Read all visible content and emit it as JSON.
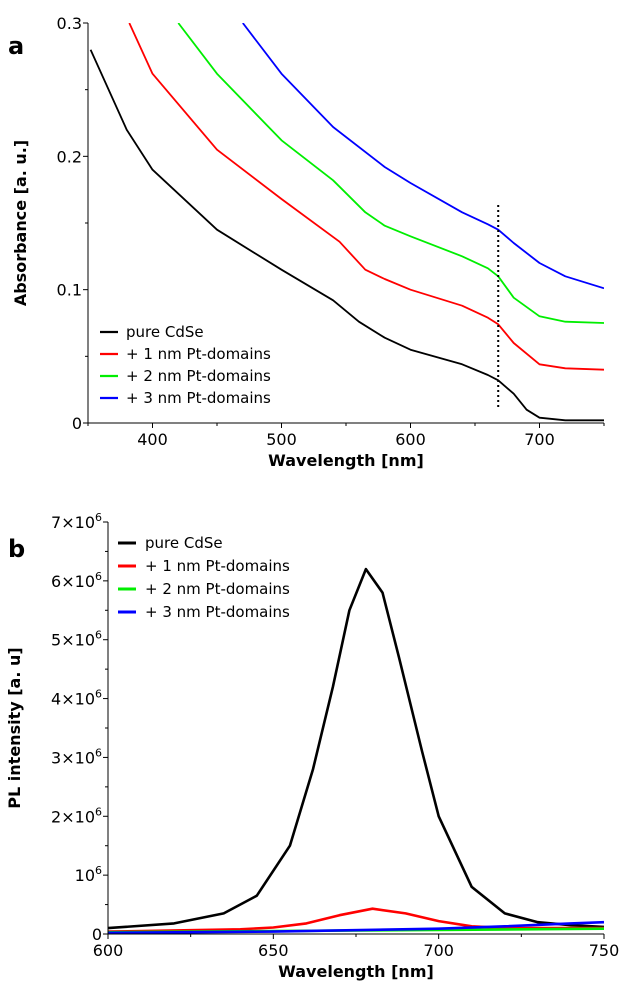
{
  "chart_data": [
    {
      "panel": "a",
      "type": "line",
      "xlabel": "Wavelength [nm]",
      "ylabel": "Absorbance [a. u.]",
      "xlim": [
        350,
        750
      ],
      "ylim": [
        0,
        0.3
      ],
      "xticks": [
        400,
        500,
        600,
        700
      ],
      "yticks": [
        {
          "value": 0,
          "label": "0"
        },
        {
          "value": 0.1,
          "label": "0.1"
        },
        {
          "value": 0.2,
          "label": "0.2"
        },
        {
          "value": 0.3,
          "label": "0.3"
        }
      ],
      "legend_position": "bottom-left",
      "marker_line": {
        "x": 668,
        "ymin": 0.012,
        "ymax": 0.165,
        "style": "dotted"
      },
      "series": [
        {
          "name": "pure CdSe",
          "color": "#000000",
          "x": [
            352,
            380,
            400,
            450,
            500,
            540,
            560,
            580,
            600,
            640,
            660,
            668,
            680,
            690,
            700,
            720,
            750
          ],
          "y": [
            0.28,
            0.22,
            0.19,
            0.145,
            0.115,
            0.092,
            0.076,
            0.064,
            0.055,
            0.044,
            0.036,
            0.032,
            0.022,
            0.01,
            0.004,
            0.002,
            0.002
          ]
        },
        {
          "name": "+ 1 nm Pt-domains",
          "color": "#ff0000",
          "x": [
            382,
            400,
            450,
            500,
            545,
            565,
            580,
            600,
            640,
            660,
            668,
            680,
            700,
            720,
            750
          ],
          "y": [
            0.3,
            0.262,
            0.205,
            0.168,
            0.136,
            0.115,
            0.108,
            0.1,
            0.088,
            0.079,
            0.074,
            0.06,
            0.044,
            0.041,
            0.04
          ]
        },
        {
          "name": "+ 2 nm Pt-domains",
          "color": "#00ee00",
          "x": [
            420,
            450,
            500,
            540,
            565,
            580,
            600,
            640,
            660,
            668,
            680,
            700,
            720,
            750
          ],
          "y": [
            0.3,
            0.262,
            0.212,
            0.182,
            0.158,
            0.148,
            0.14,
            0.125,
            0.116,
            0.11,
            0.094,
            0.08,
            0.076,
            0.075
          ]
        },
        {
          "name": "+ 3 nm Pt-domains",
          "color": "#0000ff",
          "x": [
            470,
            500,
            540,
            580,
            600,
            640,
            660,
            668,
            680,
            700,
            720,
            750
          ],
          "y": [
            0.3,
            0.262,
            0.222,
            0.192,
            0.18,
            0.158,
            0.149,
            0.145,
            0.135,
            0.12,
            0.11,
            0.101
          ]
        }
      ]
    },
    {
      "panel": "b",
      "type": "line",
      "xlabel": "Wavelength [nm]",
      "ylabel": "PL intensity [a. u]",
      "xlim": [
        600,
        750
      ],
      "ylim": [
        0,
        7000000
      ],
      "xticks": [
        600,
        650,
        700,
        750
      ],
      "yticks": [
        {
          "value": 0,
          "label": "0",
          "exp": ""
        },
        {
          "value": 1000000,
          "label": "10",
          "exp": "6"
        },
        {
          "value": 2000000,
          "label": "2×10",
          "exp": "6"
        },
        {
          "value": 3000000,
          "label": "3×10",
          "exp": "6"
        },
        {
          "value": 4000000,
          "label": "4×10",
          "exp": "6"
        },
        {
          "value": 5000000,
          "label": "5×10",
          "exp": "6"
        },
        {
          "value": 6000000,
          "label": "6×10",
          "exp": "6"
        },
        {
          "value": 7000000,
          "label": "7×10",
          "exp": "6"
        }
      ],
      "legend_position": "top-left",
      "series": [
        {
          "name": "pure CdSe",
          "color": "#000000",
          "x": [
            600,
            620,
            635,
            645,
            655,
            662,
            668,
            673,
            678,
            683,
            688,
            695,
            700,
            710,
            720,
            730,
            740,
            750
          ],
          "y": [
            100000,
            180000,
            350000,
            650000,
            1500000,
            2800000,
            4200000,
            5500000,
            6200000,
            5800000,
            4700000,
            3100000,
            2000000,
            800000,
            350000,
            200000,
            150000,
            120000
          ]
        },
        {
          "name": "+ 1 nm Pt-domains",
          "color": "#ff0000",
          "x": [
            600,
            640,
            650,
            660,
            670,
            680,
            690,
            700,
            710,
            720,
            750
          ],
          "y": [
            40000,
            80000,
            110000,
            180000,
            320000,
            430000,
            350000,
            220000,
            130000,
            100000,
            100000
          ]
        },
        {
          "name": "+ 2 nm Pt-domains",
          "color": "#00ee00",
          "x": [
            600,
            650,
            700,
            750
          ],
          "y": [
            30000,
            50000,
            70000,
            90000
          ]
        },
        {
          "name": "+ 3 nm Pt-domains",
          "color": "#0000ff",
          "x": [
            600,
            650,
            700,
            720,
            740,
            750
          ],
          "y": [
            20000,
            40000,
            90000,
            130000,
            180000,
            200000
          ]
        }
      ]
    }
  ]
}
